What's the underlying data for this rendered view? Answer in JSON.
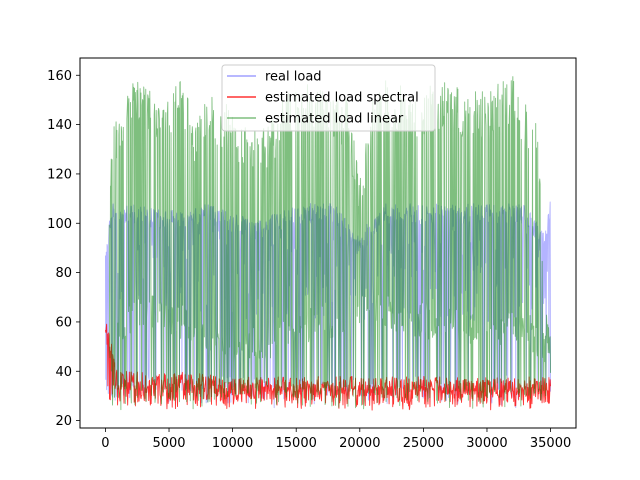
{
  "chart_data": {
    "type": "line",
    "title": "",
    "xlabel": "",
    "ylabel": "",
    "xlim": [
      -2000,
      37000
    ],
    "ylim": [
      17,
      167
    ],
    "xticks": [
      0,
      5000,
      10000,
      15000,
      20000,
      25000,
      30000,
      35000
    ],
    "xtick_labels": [
      "0",
      "5000",
      "10000",
      "15000",
      "20000",
      "25000",
      "30000",
      "35000"
    ],
    "yticks": [
      20,
      40,
      60,
      80,
      100,
      120,
      140,
      160
    ],
    "ytick_labels": [
      "20",
      "40",
      "60",
      "80",
      "100",
      "120",
      "140",
      "160"
    ],
    "grid": false,
    "legend": {
      "placement": "top-center"
    },
    "x_range": [
      0,
      35000
    ],
    "series": [
      {
        "name": "real load",
        "color": "#4444ff",
        "alpha": 0.4,
        "baseline": [
          25,
          30
        ],
        "peak_envelope": [
          [
            0,
            92
          ],
          [
            500,
            108
          ],
          [
            2000,
            108
          ],
          [
            5000,
            105
          ],
          [
            8000,
            108
          ],
          [
            10000,
            104
          ],
          [
            12000,
            101
          ],
          [
            15000,
            108
          ],
          [
            18000,
            108
          ],
          [
            20000,
            94
          ],
          [
            22000,
            108
          ],
          [
            25000,
            108
          ],
          [
            28000,
            108
          ],
          [
            30000,
            108
          ],
          [
            33000,
            108
          ],
          [
            34500,
            96
          ],
          [
            35000,
            112
          ]
        ]
      },
      {
        "name": "estimated load spectral",
        "color": "#ff0000",
        "alpha": 0.8,
        "baseline": [
          24,
          30
        ],
        "peak_envelope": [
          [
            0,
            62
          ],
          [
            1000,
            40
          ],
          [
            5000,
            40
          ],
          [
            10000,
            38
          ],
          [
            15000,
            38
          ],
          [
            20000,
            38
          ],
          [
            25000,
            38
          ],
          [
            30000,
            37
          ],
          [
            35000,
            38
          ]
        ]
      },
      {
        "name": "estimated load linear",
        "color": "#008000",
        "alpha": 0.5,
        "baseline": [
          24,
          29
        ],
        "peak_envelope": [
          [
            300,
            108
          ],
          [
            500,
            135
          ],
          [
            1000,
            148
          ],
          [
            2000,
            160
          ],
          [
            3000,
            158
          ],
          [
            4000,
            154
          ],
          [
            5000,
            156
          ],
          [
            6000,
            158
          ],
          [
            7000,
            145
          ],
          [
            8000,
            152
          ],
          [
            9000,
            150
          ],
          [
            10000,
            148
          ],
          [
            11000,
            140
          ],
          [
            12000,
            138
          ],
          [
            13000,
            141
          ],
          [
            14000,
            153
          ],
          [
            15000,
            155
          ],
          [
            16000,
            159
          ],
          [
            17000,
            154
          ],
          [
            18000,
            152
          ],
          [
            19000,
            152
          ],
          [
            20000,
            120
          ],
          [
            21000,
            150
          ],
          [
            22000,
            158
          ],
          [
            23000,
            157
          ],
          [
            24000,
            151
          ],
          [
            25000,
            155
          ],
          [
            26000,
            157
          ],
          [
            27000,
            157
          ],
          [
            28000,
            154
          ],
          [
            29000,
            155
          ],
          [
            30000,
            153
          ],
          [
            31000,
            158
          ],
          [
            32000,
            160
          ],
          [
            33000,
            150
          ],
          [
            34000,
            150
          ],
          [
            34500,
            65
          ],
          [
            35000,
            60
          ]
        ],
        "mid_band_envelope": [
          [
            0,
            45
          ],
          [
            1000,
            60
          ],
          [
            2000,
            70
          ],
          [
            3000,
            72
          ],
          [
            5000,
            70
          ],
          [
            7000,
            66
          ],
          [
            9000,
            60
          ],
          [
            11000,
            58
          ],
          [
            13000,
            60
          ],
          [
            15000,
            64
          ],
          [
            17000,
            70
          ],
          [
            19000,
            64
          ],
          [
            21000,
            76
          ],
          [
            22000,
            72
          ],
          [
            25000,
            68
          ],
          [
            28000,
            66
          ],
          [
            30000,
            64
          ],
          [
            33000,
            66
          ],
          [
            35000,
            52
          ]
        ]
      }
    ]
  }
}
